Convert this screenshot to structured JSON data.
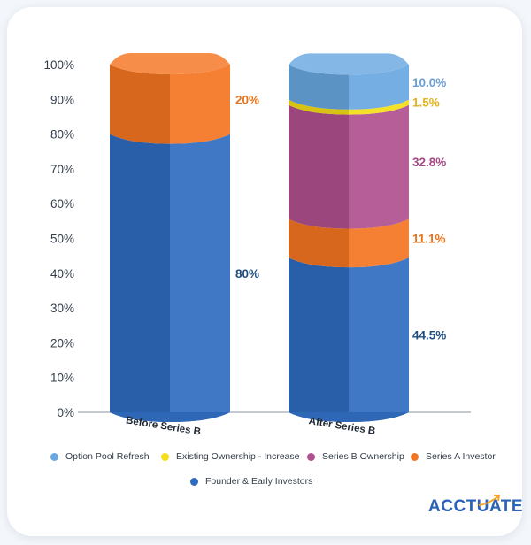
{
  "chart_data": {
    "type": "bar",
    "stacked": true,
    "categories": [
      "Before Series B",
      "After Series B"
    ],
    "y_ticks": [
      "0%",
      "10%",
      "20%",
      "30%",
      "40%",
      "50%",
      "60%",
      "70%",
      "80%",
      "90%",
      "100%"
    ],
    "ylim": [
      0,
      100
    ],
    "grid": false,
    "legend_position": "bottom",
    "series": [
      {
        "name": "Founder & Early Investors",
        "color": "#2f6cc0",
        "values": [
          80,
          44.5
        ],
        "labels": [
          "80%",
          "44.5%"
        ]
      },
      {
        "name": "Series A Investor",
        "color": "#f47521",
        "values": [
          20,
          11.1
        ],
        "labels": [
          "20%",
          "11.1%"
        ]
      },
      {
        "name": "Series B Ownership",
        "color": "#b0508e",
        "values": [
          0,
          32.8
        ],
        "labels": [
          "",
          "32.8%"
        ]
      },
      {
        "name": "Existing Ownership - Increase",
        "color": "#f5de16",
        "values": [
          0,
          1.5
        ],
        "labels": [
          "",
          "1.5%"
        ]
      },
      {
        "name": "Option Pool Refresh",
        "color": "#69a7e0",
        "values": [
          0,
          10.0
        ],
        "labels": [
          "",
          "10.0%"
        ]
      }
    ],
    "label_colors": {
      "Founder & Early Investors": "#1f4d80",
      "Series A Investor": "#e8731b",
      "Series B Ownership": "#a84585",
      "Existing Ownership - Increase": "#e3b21d",
      "Option Pool Refresh": "#6a9fd6"
    }
  },
  "legend": {
    "items": [
      {
        "label": "Option Pool Refresh",
        "color": "#69a7e0"
      },
      {
        "label": "Existing Ownership - Increase",
        "color": "#f5de16"
      },
      {
        "label": "Series B Ownership",
        "color": "#b0508e"
      },
      {
        "label": "Series A Investor",
        "color": "#f47521"
      },
      {
        "label": "Founder & Early Investors",
        "color": "#2f6cc0"
      }
    ]
  },
  "brand": {
    "logo_text": "ACCTUATE",
    "color": "#2b63b8",
    "accent": "#f5a623"
  }
}
